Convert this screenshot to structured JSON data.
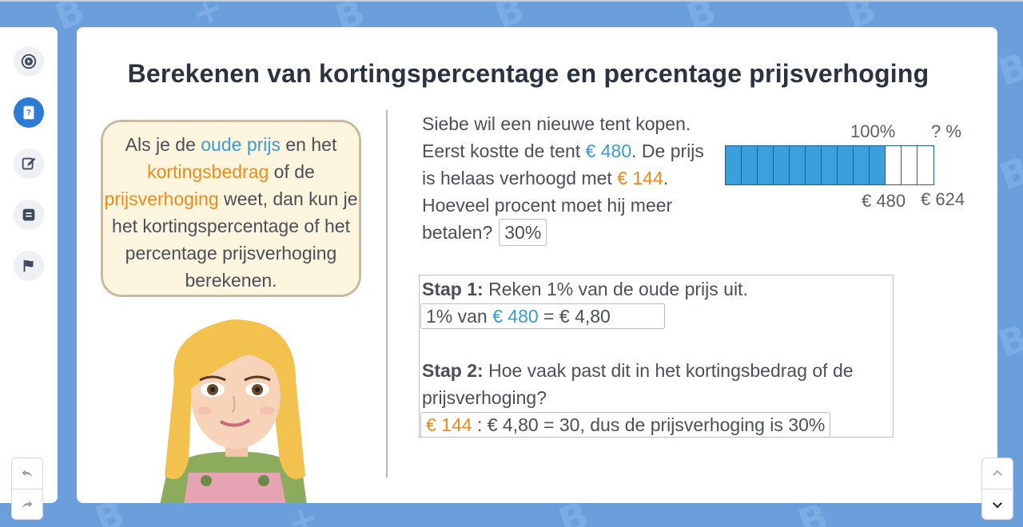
{
  "sidebar": {
    "items": [
      {
        "name": "play-circle-icon",
        "active": false
      },
      {
        "name": "book-question-icon",
        "active": true
      },
      {
        "name": "edit-icon",
        "active": false
      },
      {
        "name": "list-icon",
        "active": false
      },
      {
        "name": "flag-icon",
        "active": false
      }
    ]
  },
  "lesson": {
    "title": "Berekenen van kortingspercentage en percentage prijsverhoging"
  },
  "bubble": {
    "t1": "Als je de ",
    "t2": "oude prijs",
    "t3": " en het ",
    "t4": "kortingsbedrag",
    "t5": " of de ",
    "t6": "prijsverhoging",
    "t7": " weet, dan kun je het kortingspercentage of het percentage prijsverhoging berekenen."
  },
  "problem": {
    "p1": "Siebe wil een nieuwe tent kopen. Eerst kostte de tent ",
    "old_price": "€ 480",
    "p2": ". De prijs is helaas verhoogd met ",
    "increase": "€ 144",
    "p3": ". Hoeveel procent moet hij meer betalen?",
    "answer": "30%"
  },
  "bar": {
    "label_100": "100%",
    "label_q": "? %",
    "label_old": "€ 480",
    "label_new": "€ 624",
    "filled_segments": 10,
    "total_segments": 13
  },
  "steps": {
    "step1_label": "Stap 1:",
    "step1_text": " Reken 1% van de oude prijs uit.",
    "step1_a": "1% van ",
    "step1_b": "€ 480",
    "step1_c": " = € 4,80",
    "step2_label": "Stap 2:",
    "step2_text": " Hoe vaak past dit in het kortingsbedrag of de prijsverhoging?",
    "step2_a": "€ 144",
    "step2_b": " : € 4,80 = 30, dus de prijsverhoging is 30%"
  },
  "colors": {
    "accent_blue": "#3a9bd5",
    "accent_orange": "#ef8a1a",
    "bar_fill": "#3b9fdc",
    "sidebar_active": "#2d7bd6"
  }
}
